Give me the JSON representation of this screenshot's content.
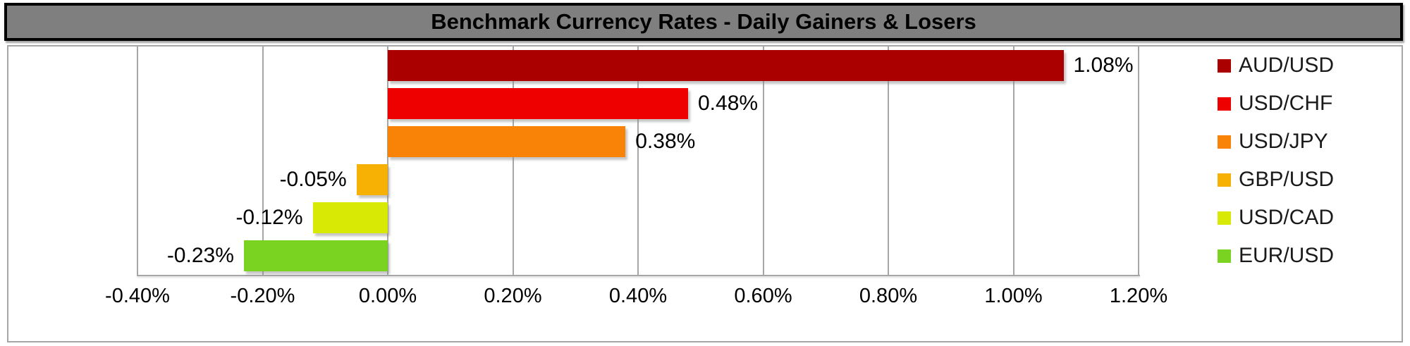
{
  "title": "Benchmark Currency Rates - Daily Gainers & Losers",
  "chart_data": {
    "type": "bar",
    "orientation": "horizontal",
    "title": "Benchmark Currency Rates - Daily Gainers & Losers",
    "categories": [
      "AUD/USD",
      "USD/CHF",
      "USD/JPY",
      "GBP/USD",
      "USD/CAD",
      "EUR/USD"
    ],
    "values": [
      1.08,
      0.48,
      0.38,
      -0.05,
      -0.12,
      -0.23
    ],
    "data_labels": [
      "1.08%",
      "0.48%",
      "0.38%",
      "-0.05%",
      "-0.12%",
      "-0.23%"
    ],
    "bar_colors": [
      "#aa0000",
      "#ee0000",
      "#f88306",
      "#f6b104",
      "#d7e905",
      "#7ad321"
    ],
    "x_ticks": [
      {
        "value": -0.4,
        "label": "-0.40%"
      },
      {
        "value": -0.2,
        "label": "-0.20%"
      },
      {
        "value": 0.0,
        "label": "0.00%"
      },
      {
        "value": 0.2,
        "label": "0.20%"
      },
      {
        "value": 0.4,
        "label": "0.40%"
      },
      {
        "value": 0.6,
        "label": "0.60%"
      },
      {
        "value": 0.8,
        "label": "0.80%"
      },
      {
        "value": 1.0,
        "label": "1.00%"
      },
      {
        "value": 1.2,
        "label": "1.20%"
      }
    ],
    "xlim": [
      -0.4,
      1.2
    ],
    "unit": "%",
    "grid": "vertical-gridlines",
    "legend_position": "right",
    "legend": [
      "AUD/USD",
      "USD/CHF",
      "USD/JPY",
      "GBP/USD",
      "USD/CAD",
      "EUR/USD"
    ]
  },
  "style": {
    "title_bar_bg": "#7f7f7f",
    "title_text_color": "#000000",
    "title_border_color": "#000000",
    "chart_background": "#ffffff",
    "chart_border_color": "#a6a6a6",
    "gridline_color": "#a6a6a6",
    "axis_line_color": "#a6a6a6",
    "label_color": "#000000"
  }
}
